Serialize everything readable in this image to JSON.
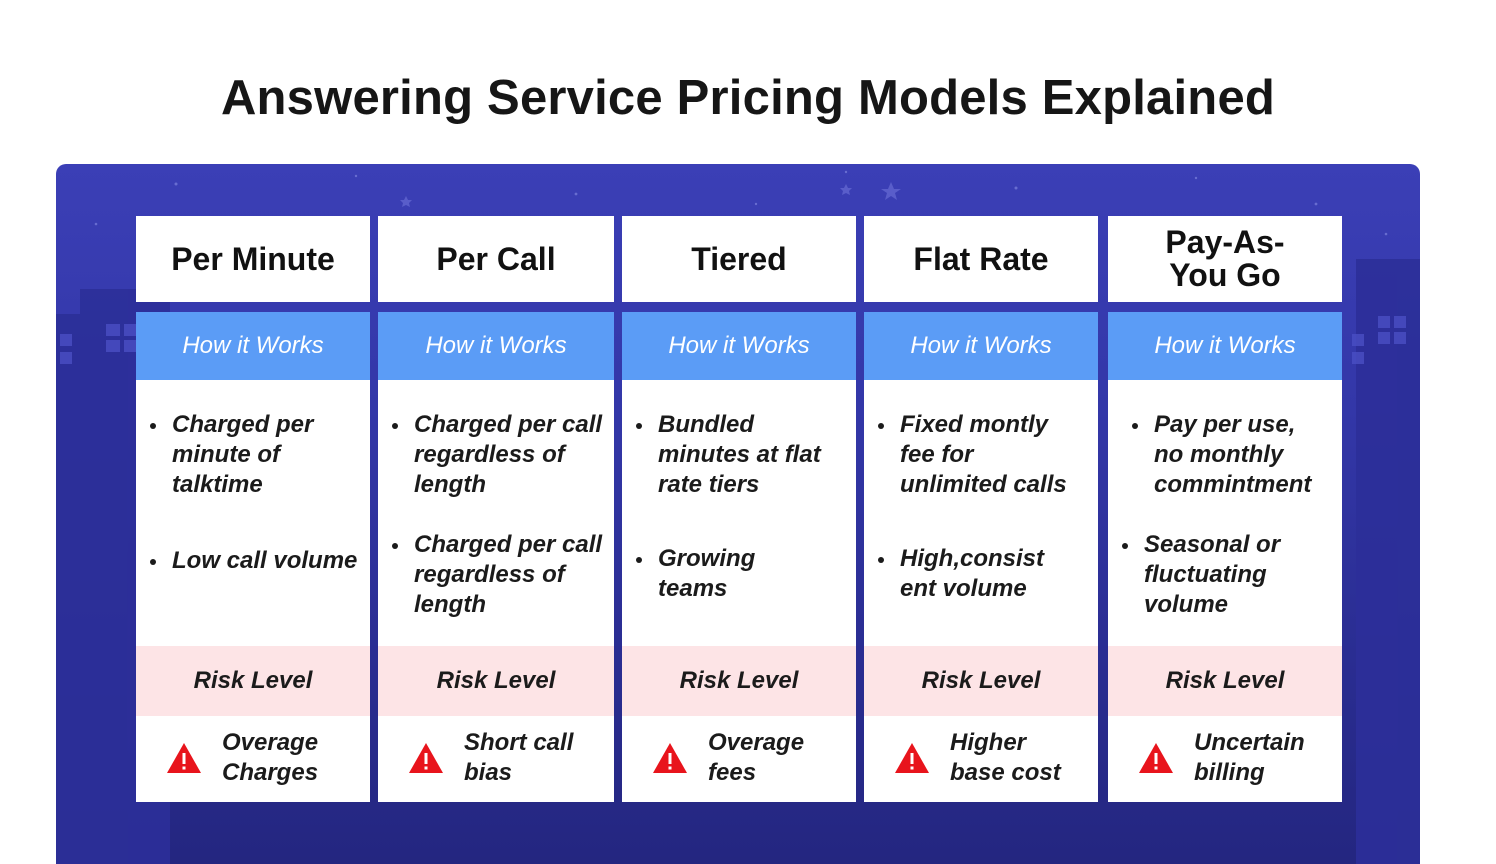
{
  "title": "Answering Service Pricing Models Explained",
  "how_label": "How it Works",
  "risk_label": "Risk Level",
  "columns": [
    {
      "name": "Per Minute",
      "bullets": [
        "Charged per minute of talktime",
        "Low call volume"
      ],
      "risk": [
        "Overage",
        "Charges"
      ]
    },
    {
      "name": "Per Call",
      "bullets": [
        "Charged per call regardless  of length",
        "Charged per call regardless  of length"
      ],
      "risk": [
        "Short call",
        "bias"
      ]
    },
    {
      "name": "Tiered",
      "bullets": [
        "Bundled minutes at flat rate tiers",
        "Growing teams"
      ],
      "risk": [
        "Overage",
        "fees"
      ]
    },
    {
      "name": "Flat Rate",
      "bullets": [
        "Fixed montly fee for unlimited calls",
        "High,consist ent volume"
      ],
      "risk": [
        "Higher",
        "base cost"
      ]
    },
    {
      "name": "Pay-As-You Go",
      "bullets": [
        "Pay per use, no monthly commintment",
        "Seasonal or fluctuating volume"
      ],
      "risk": [
        "Uncertain",
        "billing"
      ]
    }
  ],
  "colors": {
    "panel": "#3337a8",
    "how_band": "#5b9cf6",
    "risk_band": "#fde4e6",
    "warning": "#e8141c"
  },
  "icons": {
    "risk": "warning-triangle-icon"
  }
}
